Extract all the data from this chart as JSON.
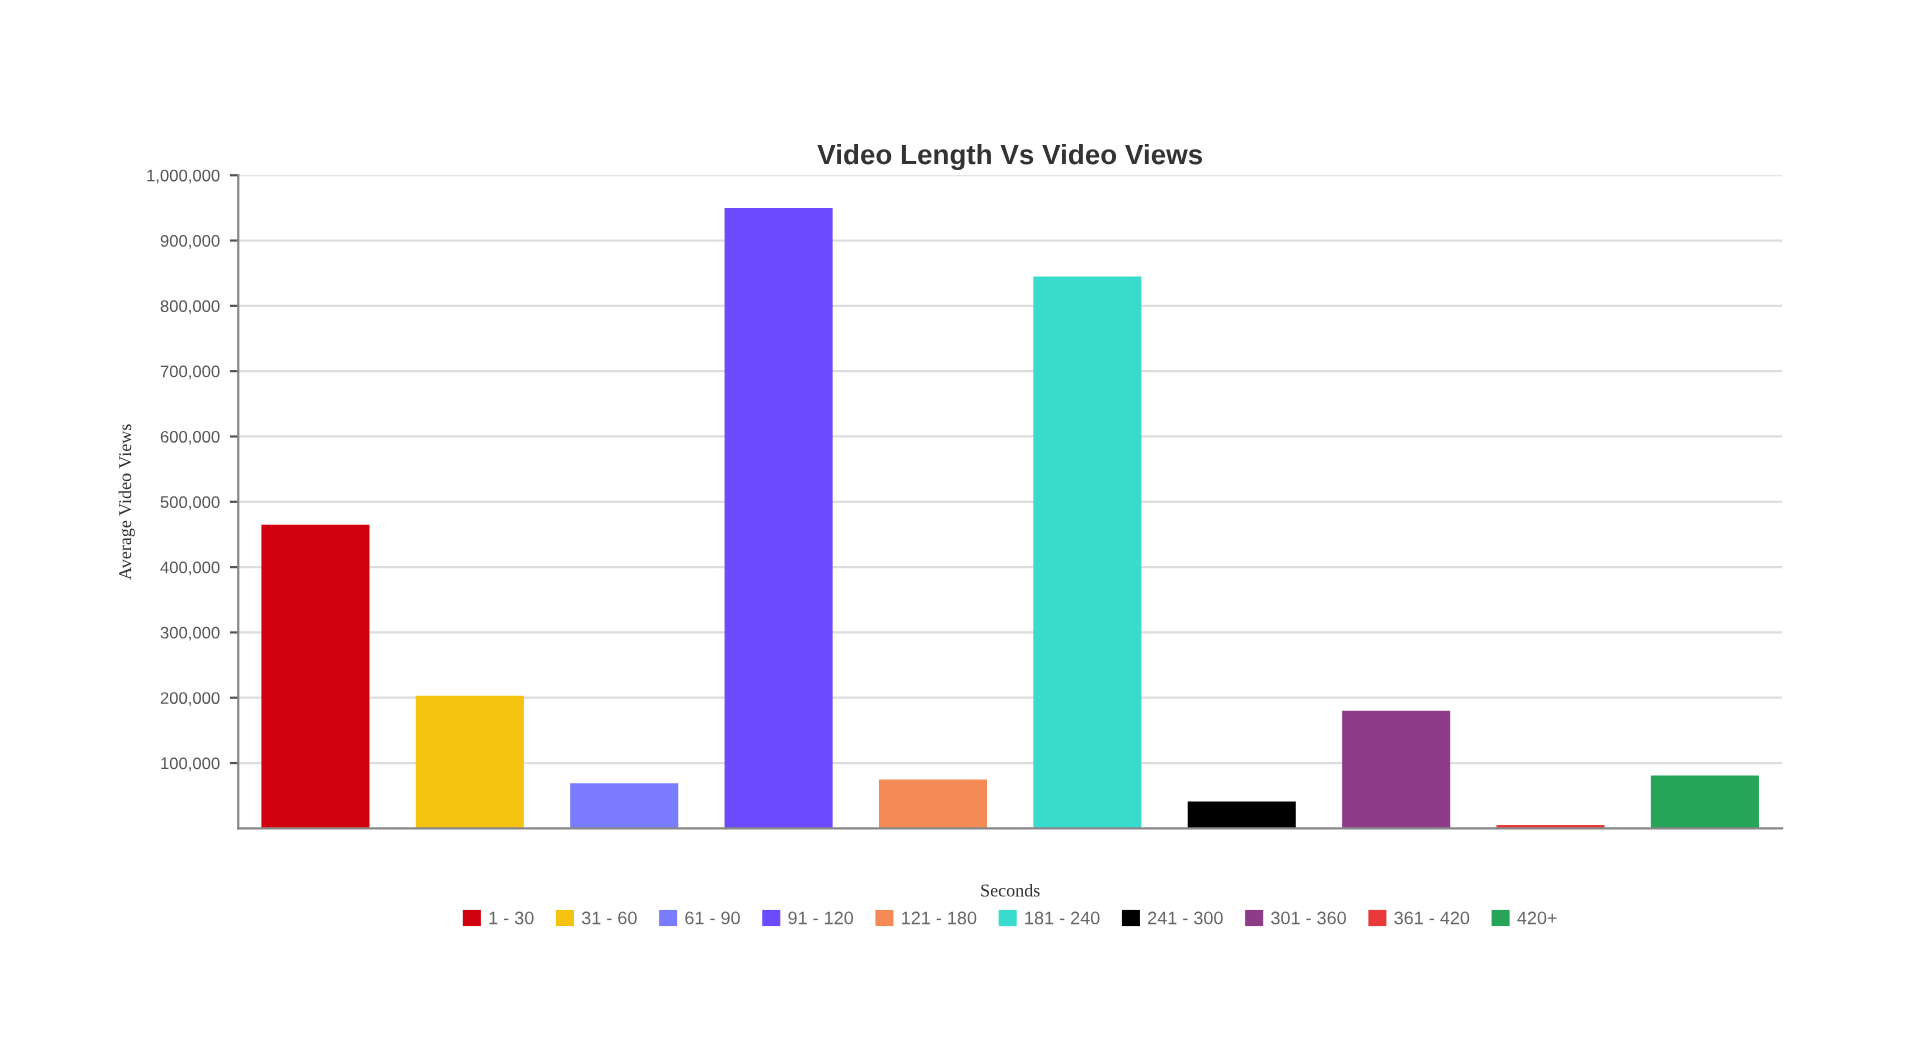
{
  "chart_data": {
    "type": "bar",
    "title": "Video Length Vs Video Views",
    "xlabel": "Seconds",
    "ylabel": "Average Video Views",
    "categories": [
      null,
      null,
      null,
      null,
      null,
      null,
      null,
      null,
      null,
      null
    ],
    "series": [
      {
        "name": "1 - 30",
        "color": "#d0000f",
        "values": [
          465000,
          null,
          null,
          null,
          null,
          null,
          null,
          null,
          null,
          null
        ]
      },
      {
        "name": "31 - 60",
        "color": "#f4c311",
        "values": [
          null,
          203000,
          null,
          null,
          null,
          null,
          null,
          null,
          null,
          null
        ]
      },
      {
        "name": "61 - 90",
        "color": "#7a7bff",
        "values": [
          null,
          null,
          69000,
          null,
          null,
          null,
          null,
          null,
          null,
          null
        ]
      },
      {
        "name": "91 - 120",
        "color": "#6c4aff",
        "values": [
          null,
          null,
          null,
          950000,
          null,
          null,
          null,
          null,
          null,
          null
        ]
      },
      {
        "name": "121 - 180",
        "color": "#f48a56",
        "values": [
          null,
          null,
          null,
          null,
          75000,
          null,
          null,
          null,
          null,
          null
        ]
      },
      {
        "name": "181 - 240",
        "color": "#38dbcc",
        "values": [
          null,
          null,
          null,
          null,
          null,
          845000,
          null,
          null,
          null,
          null
        ]
      },
      {
        "name": "241 - 300",
        "color": "#000000",
        "values": [
          null,
          null,
          null,
          null,
          null,
          null,
          41000,
          null,
          null,
          null
        ]
      },
      {
        "name": "301 - 360",
        "color": "#8e3c87",
        "values": [
          null,
          null,
          null,
          null,
          null,
          null,
          null,
          180000,
          null,
          null
        ]
      },
      {
        "name": "361 - 420",
        "color": "#e83a3a",
        "values": [
          null,
          null,
          null,
          null,
          null,
          null,
          null,
          null,
          5000,
          null
        ]
      },
      {
        "name": "420+",
        "color": "#26a559",
        "values": [
          null,
          null,
          null,
          null,
          null,
          null,
          null,
          null,
          null,
          81000
        ]
      }
    ],
    "ylim": [
      0,
      1000000
    ],
    "yticks": [
      {
        "value": 100000,
        "label": "100,000"
      },
      {
        "value": 200000,
        "label": "200,000"
      },
      {
        "value": 300000,
        "label": "300,000"
      },
      {
        "value": 400000,
        "label": "400,000"
      },
      {
        "value": 500000,
        "label": "500,000"
      },
      {
        "value": 600000,
        "label": "600,000"
      },
      {
        "value": 700000,
        "label": "700,000"
      },
      {
        "value": 800000,
        "label": "800,000"
      },
      {
        "value": 900000,
        "label": "900,000"
      },
      {
        "value": 1000000,
        "label": "1,000,000"
      }
    ],
    "grid": "y",
    "legend": "bottom",
    "tick_labels": "y"
  }
}
